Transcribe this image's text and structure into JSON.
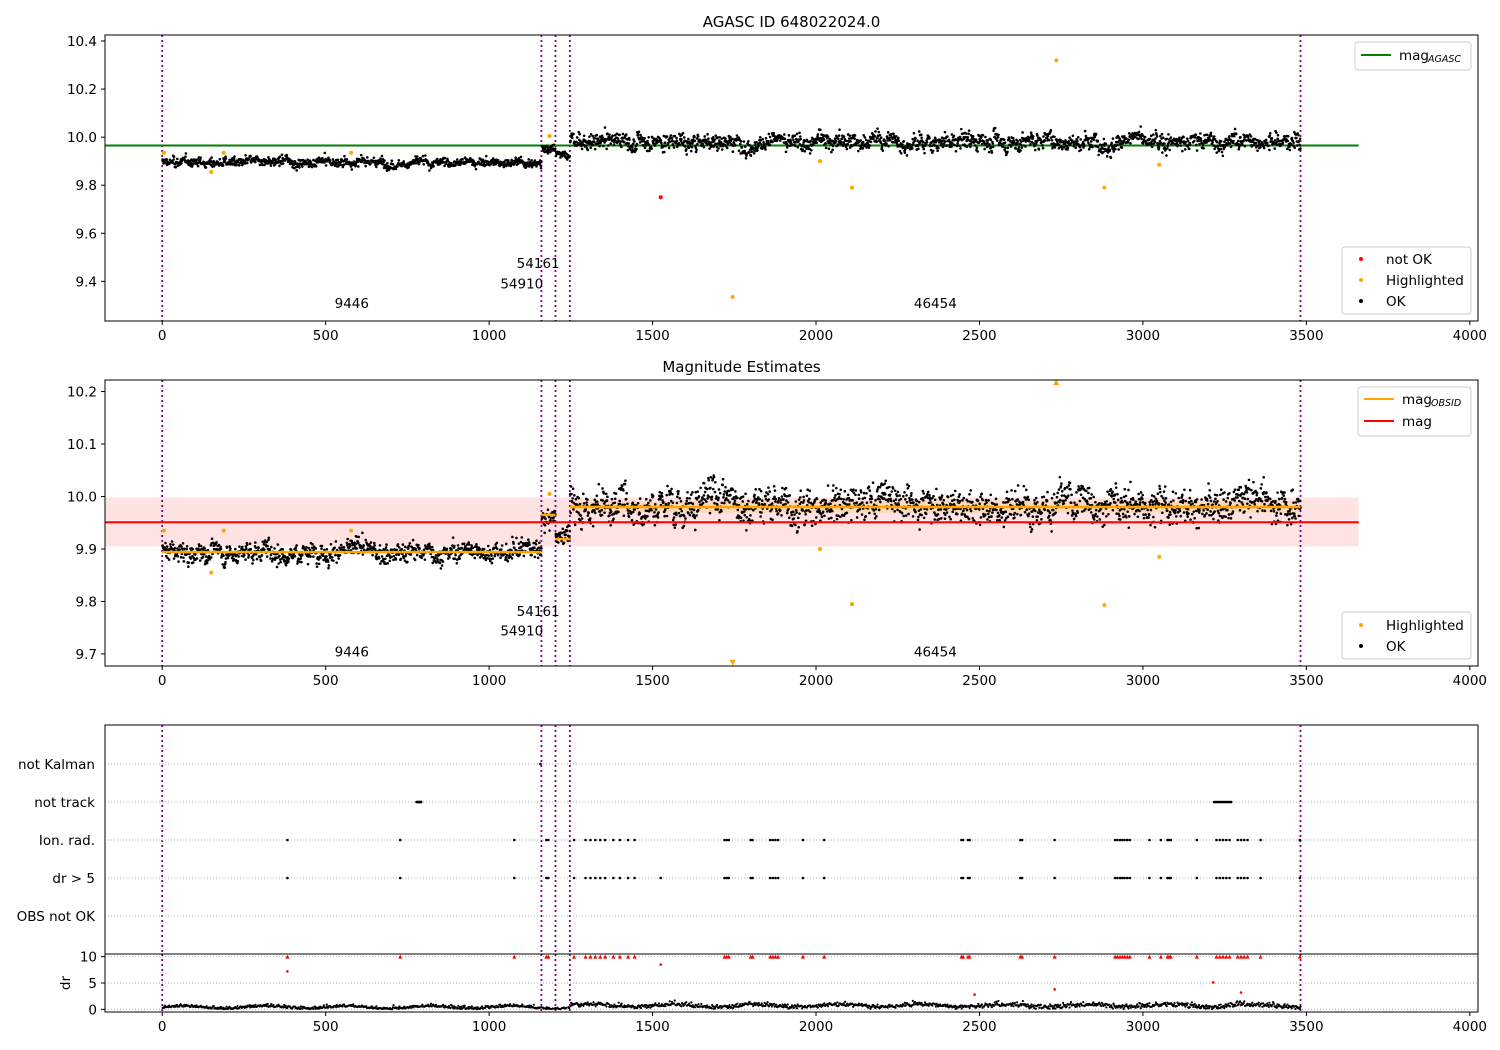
{
  "chart_data": [
    {
      "id": "p1",
      "type": "scatter",
      "title": "AGASC ID 648022024.0",
      "xlim": [
        -175,
        4025
      ],
      "ylim": [
        9.235,
        10.425
      ],
      "xticks": [
        0,
        500,
        1000,
        1500,
        2000,
        2500,
        3000,
        3500,
        4000
      ],
      "xtick_labels": [
        "0",
        "500",
        "1000",
        "1500",
        "2000",
        "2500",
        "3000",
        "3500",
        "4000"
      ],
      "yticks": [
        9.4,
        9.6,
        9.8,
        10.0,
        10.2,
        10.4
      ],
      "ytick_labels": [
        "9.4",
        "9.6",
        "9.8",
        "10.0",
        "10.2",
        "10.4"
      ],
      "vlines": [
        0,
        1160,
        1203,
        1247,
        3482
      ],
      "ok_segments": [
        {
          "x": [
            0,
            1160
          ],
          "mean": 9.895,
          "std": 0.012
        },
        {
          "x": [
            1160,
            1203
          ],
          "mean": 9.96,
          "std": 0.012
        },
        {
          "x": [
            1203,
            1247
          ],
          "mean": 9.925,
          "std": 0.012
        },
        {
          "x": [
            1247,
            3482
          ],
          "mean": 9.985,
          "std": 0.022
        }
      ],
      "hline": {
        "y": 9.965,
        "x": [
          -175,
          3660
        ],
        "color": "#008000"
      },
      "highlighted": [
        {
          "x": 5,
          "y": 9.935
        },
        {
          "x": 150,
          "y": 9.855
        },
        {
          "x": 188,
          "y": 9.935
        },
        {
          "x": 578,
          "y": 9.935
        },
        {
          "x": 1185,
          "y": 10.005
        },
        {
          "x": 1745,
          "y": 9.335
        },
        {
          "x": 2012,
          "y": 9.9
        },
        {
          "x": 2110,
          "y": 9.79
        },
        {
          "x": 2735,
          "y": 10.32
        },
        {
          "x": 2882,
          "y": 9.79
        },
        {
          "x": 3050,
          "y": 9.885
        }
      ],
      "not_ok": [
        {
          "x": 1525,
          "y": 9.75
        }
      ],
      "annotations": [
        {
          "text": "9446",
          "x": 580,
          "y": 9.29
        },
        {
          "text": "54910",
          "x": 1100,
          "y": 9.37
        },
        {
          "text": "54161",
          "x": 1150,
          "y": 9.455
        },
        {
          "text": "46454",
          "x": 2365,
          "y": 9.29
        }
      ],
      "legend_top": {
        "position": "upper right",
        "entries": [
          {
            "label": "mag",
            "sub": "AGASC",
            "color": "#008000"
          }
        ]
      },
      "legend_bottom": {
        "position": "lower right",
        "entries": [
          {
            "label": "not OK",
            "color": "#ff0000"
          },
          {
            "label": "Highlighted",
            "color": "#ffa500"
          },
          {
            "label": "OK",
            "color": "#000000"
          }
        ]
      }
    },
    {
      "id": "p2",
      "type": "scatter",
      "title": "Magnitude Estimates",
      "xlim": [
        -175,
        4025
      ],
      "ylim": [
        9.677,
        10.222
      ],
      "xticks": [
        0,
        500,
        1000,
        1500,
        2000,
        2500,
        3000,
        3500,
        4000
      ],
      "xtick_labels": [
        "0",
        "500",
        "1000",
        "1500",
        "2000",
        "2500",
        "3000",
        "3500",
        "4000"
      ],
      "yticks": [
        9.7,
        9.8,
        9.9,
        10.0,
        10.1,
        10.2
      ],
      "ytick_labels": [
        "9.7",
        "9.8",
        "9.9",
        "10.0",
        "10.1",
        "10.2"
      ],
      "vlines": [
        0,
        1160,
        1203,
        1247,
        3482
      ],
      "mag_line": {
        "y": 9.951,
        "x": [
          -175,
          3660
        ],
        "band": [
          9.905,
          9.998
        ],
        "color": "#ff0000"
      },
      "obsid_lines": [
        {
          "x": [
            0,
            1160
          ],
          "y": 9.894
        },
        {
          "x": [
            1160,
            1203
          ],
          "y": 9.965
        },
        {
          "x": [
            1203,
            1247
          ],
          "y": 9.919
        },
        {
          "x": [
            1247,
            3482
          ],
          "y": 9.98
        }
      ],
      "obsid_band": {
        "x": [
          1247,
          3482
        ],
        "range": [
          9.969,
          9.991
        ]
      },
      "highlighted": [
        {
          "x": 5,
          "y": 9.935
        },
        {
          "x": 150,
          "y": 9.855
        },
        {
          "x": 188,
          "y": 9.935
        },
        {
          "x": 578,
          "y": 9.935
        },
        {
          "x": 1185,
          "y": 10.005
        },
        {
          "x": 2012,
          "y": 9.9
        },
        {
          "x": 2110,
          "y": 9.795
        },
        {
          "x": 2882,
          "y": 9.793
        },
        {
          "x": 3050,
          "y": 9.885
        }
      ],
      "offscale_markers": [
        {
          "x": 2735,
          "y": 10.218,
          "direction": "up"
        },
        {
          "x": 1745,
          "y": 9.683,
          "direction": "down"
        }
      ],
      "annotations": [
        {
          "text": "9446",
          "x": 580,
          "y": 9.695
        },
        {
          "text": "54910",
          "x": 1100,
          "y": 9.735
        },
        {
          "text": "54161",
          "x": 1150,
          "y": 9.772
        },
        {
          "text": "46454",
          "x": 2365,
          "y": 9.695
        }
      ],
      "legend_top": {
        "position": "upper right",
        "entries": [
          {
            "label": "mag",
            "sub": "OBSID",
            "color": "#ffa500"
          },
          {
            "label": "mag",
            "color": "#ff0000"
          }
        ]
      },
      "legend_bottom": {
        "position": "lower right",
        "entries": [
          {
            "label": "Highlighted",
            "color": "#ffa500"
          },
          {
            "label": "OK",
            "color": "#000000"
          }
        ]
      }
    },
    {
      "id": "p3",
      "type": "scatter",
      "xlim": [
        -175,
        4025
      ],
      "categories": [
        "not Kalman",
        "not track",
        "Ion. rad.",
        "dr > 5",
        "OBS not OK"
      ],
      "vlines": [
        0,
        1160,
        1203,
        1247,
        3482
      ],
      "flags": {
        "not Kalman": [
          1157
        ],
        "not track": [
          778,
          780,
          782,
          784,
          786,
          788,
          790,
          792,
          3218,
          3222,
          3226,
          3230,
          3234,
          3238,
          3242,
          3246,
          3250,
          3254,
          3258,
          3262,
          3266,
          3270
        ],
        "Ion. rad.": [
          383,
          728,
          1077,
          1175,
          1181,
          1260,
          1295,
          1310,
          1325,
          1340,
          1355,
          1380,
          1400,
          1425,
          1445,
          1720,
          1727,
          1733,
          1800,
          1806,
          1860,
          1868,
          1876,
          1884,
          1960,
          2025,
          2445,
          2450,
          2465,
          2470,
          2625,
          2630,
          2730,
          2915,
          2922,
          2930,
          2937,
          2944,
          2952,
          2960,
          3020,
          3055,
          3075,
          3080,
          3085,
          3165,
          3225,
          3235,
          3245,
          3255,
          3265,
          3290,
          3300,
          3310,
          3320,
          3360,
          3480
        ],
        "dr > 5": [
          383,
          728,
          1077,
          1175,
          1181,
          1260,
          1295,
          1310,
          1325,
          1340,
          1355,
          1380,
          1400,
          1425,
          1445,
          1525,
          1720,
          1727,
          1733,
          1800,
          1806,
          1860,
          1868,
          1876,
          1884,
          1960,
          2025,
          2445,
          2450,
          2465,
          2470,
          2625,
          2630,
          2730,
          2915,
          2922,
          2930,
          2937,
          2944,
          2952,
          2960,
          3020,
          3055,
          3075,
          3080,
          3085,
          3165,
          3225,
          3235,
          3245,
          3255,
          3265,
          3290,
          3300,
          3310,
          3320,
          3360,
          3480
        ],
        "OBS not OK": []
      }
    },
    {
      "id": "p4",
      "type": "scatter",
      "ylabel": "dr",
      "xlim": [
        -175,
        4025
      ],
      "ylim": [
        -0.5,
        10.5
      ],
      "yticks": [
        0,
        5,
        10
      ],
      "ytick_labels": [
        "0",
        "5",
        "10"
      ],
      "xticks": [
        0,
        500,
        1000,
        1500,
        2000,
        2500,
        3000,
        3500,
        4000
      ],
      "xtick_labels": [
        "0",
        "500",
        "1000",
        "1500",
        "2000",
        "2500",
        "3000",
        "3500",
        "4000"
      ],
      "vlines": [
        0,
        1160,
        1203,
        1247,
        3482
      ],
      "clipped_at_10": [
        383,
        728,
        1077,
        1175,
        1181,
        1260,
        1295,
        1310,
        1325,
        1340,
        1355,
        1380,
        1400,
        1425,
        1445,
        1720,
        1727,
        1733,
        1800,
        1806,
        1860,
        1868,
        1876,
        1884,
        1960,
        2025,
        2445,
        2450,
        2465,
        2470,
        2625,
        2630,
        2730,
        2915,
        2922,
        2930,
        2937,
        2944,
        2952,
        2960,
        3020,
        3055,
        3075,
        3080,
        3085,
        3165,
        3225,
        3235,
        3245,
        3255,
        3265,
        3290,
        3300,
        3310,
        3320,
        3360,
        3480
      ],
      "red_points": [
        {
          "x": 383,
          "y": 7.2
        },
        {
          "x": 1525,
          "y": 8.5
        },
        {
          "x": 2730,
          "y": 3.8
        },
        {
          "x": 2485,
          "y": 2.8
        },
        {
          "x": 3300,
          "y": 3.2
        },
        {
          "x": 3215,
          "y": 5.1
        }
      ],
      "ok_range": [
        0.0,
        1.8
      ]
    }
  ]
}
